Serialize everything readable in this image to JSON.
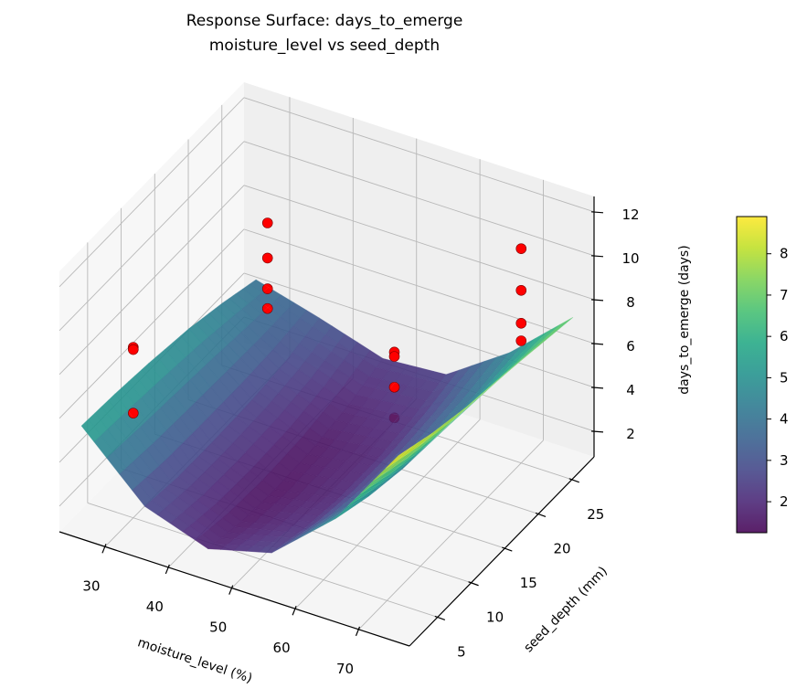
{
  "chart_data": {
    "type": "surface3d",
    "title": [
      "Response Surface: days_to_emerge",
      "moisture_level vs seed_depth"
    ],
    "xlabel": "moisture_level (%)",
    "ylabel": "seed_depth (mm)",
    "zlabel": "days_to_emerge (days)",
    "xlim": [
      22.8,
      78
    ],
    "ylim": [
      0.8,
      28.3
    ],
    "zlim": [
      0.83,
      12.7
    ],
    "xticks": [
      "30",
      "40",
      "50",
      "60",
      "70"
    ],
    "yticks": [
      "5",
      "10",
      "15",
      "20",
      "25"
    ],
    "zticks": [
      "2",
      "4",
      "6",
      "8",
      "10",
      "12"
    ],
    "grid": true,
    "colormap": "viridis",
    "surface": {
      "x": [
        25,
        35,
        45,
        55,
        65,
        75
      ],
      "y": [
        2,
        7,
        12,
        18,
        23,
        28
      ],
      "z": [
        [
          5.49,
          2.76,
          1.77,
          2.53,
          5.02,
          8.85
        ],
        [
          5.38,
          2.55,
          1.45,
          2.1,
          4.49,
          8.3
        ],
        [
          5.2,
          2.53,
          1.34,
          1.88,
          4.16,
          7.9
        ],
        [
          4.9,
          2.6,
          1.46,
          1.87,
          4.03,
          7.6
        ],
        [
          4.5,
          2.8,
          1.78,
          2.09,
          4.14,
          7.3
        ],
        [
          4.0,
          3.2,
          2.3,
          2.51,
          4.45,
          7.0
        ]
      ]
    },
    "points": {
      "color": "#ff0000",
      "x": [
        30,
        30,
        30,
        30,
        30,
        30,
        30,
        50,
        50,
        50,
        50,
        70,
        70,
        70,
        70
      ],
      "y": [
        5,
        5,
        5,
        25,
        25,
        25,
        25,
        25,
        25,
        25,
        25,
        25,
        25,
        25,
        25
      ],
      "z": [
        8.6,
        8.5,
        5.6,
        8.0,
        6.4,
        5.0,
        4.1,
        4.0,
        3.8,
        2.4,
        1.0,
        10.6,
        8.7,
        7.2,
        6.4
      ]
    },
    "colorbar": {
      "range": [
        1.25,
        8.9
      ],
      "ticks": [
        "2",
        "3",
        "4",
        "5",
        "6",
        "7",
        "8"
      ]
    }
  }
}
